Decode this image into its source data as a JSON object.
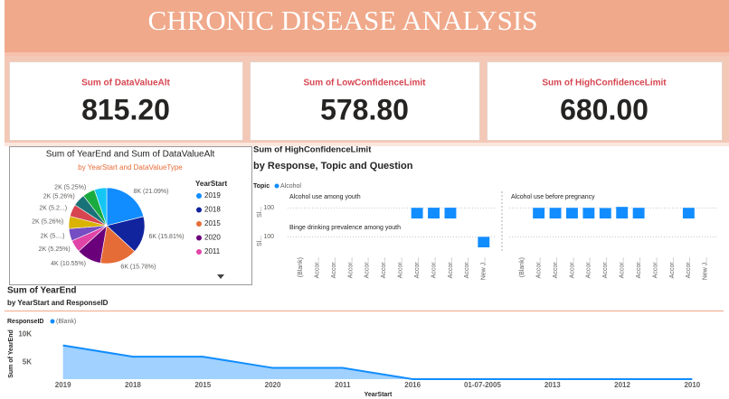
{
  "header": {
    "title": "CHRONIC DISEASE ANALYSIS"
  },
  "kpis": [
    {
      "label": "Sum of DataValueAlt",
      "value": "815.20"
    },
    {
      "label": "Sum of LowConfidenceLimit",
      "value": "578.80"
    },
    {
      "label": "Sum of HighConfidenceLimit",
      "value": "680.00"
    }
  ],
  "chart_data": [
    {
      "type": "pie",
      "title": "Sum of YearEnd and Sum of DataValueAlt",
      "subtitle": "by YearStart and DataValueType",
      "legend_title": "YearStart",
      "categories": [
        "2019",
        "2018",
        "2015",
        "2020",
        "2011",
        null,
        null,
        null,
        null,
        null,
        null
      ],
      "values": [
        21.09,
        15.81,
        15.78,
        10.55,
        5.25,
        5.25,
        5.26,
        5.25,
        5.26,
        5.25,
        5.25
      ],
      "value_labels": [
        "8K (21.09%)",
        "6K (15.81%)",
        "6K (15.78%)",
        "4K (10.55%)",
        "2K (5.25%)",
        "2K (5....)",
        "2K (5.26%)",
        "2K (5.2...)",
        "2K (5.26%)",
        "2K (5.25%)",
        null
      ],
      "colors": [
        "#118dff",
        "#12239e",
        "#e66c37",
        "#6b007b",
        "#e044a7",
        "#744ec2",
        "#d9b300",
        "#d64550",
        "#197278",
        "#1aab40",
        "#15c6f4"
      ]
    },
    {
      "type": "bar",
      "title": "Sum of HighConfidenceLimit",
      "subtitle": "by Response, Topic and Question",
      "legend_title": "Topic",
      "series_name": "Alcohol",
      "color": "#118dff",
      "y_title": "Sl...",
      "categories": [
        "(Blank)",
        "Accor...",
        "Accor...",
        "Accor...",
        "Accor...",
        "Accor...",
        "Accor...",
        "Accor...",
        "Accor...",
        "Accor...",
        "Accor...",
        "New J..."
      ],
      "ylim": [
        0,
        120
      ],
      "yticks": [
        100
      ],
      "grid": true,
      "facets": [
        {
          "title": "Alcohol use among youth",
          "values": [
            null,
            null,
            null,
            null,
            null,
            null,
            null,
            101,
            102,
            102,
            null,
            null
          ]
        },
        {
          "title": "Binge drinking prevalence among youth",
          "values": [
            null,
            null,
            null,
            null,
            null,
            null,
            null,
            null,
            null,
            null,
            null,
            100
          ]
        },
        {
          "title": "Alcohol use before pregnancy",
          "values": [
            null,
            101,
            101,
            101,
            101,
            99,
            110,
            101,
            null,
            null,
            101,
            null
          ]
        }
      ]
    },
    {
      "type": "area",
      "title": "Sum of YearEnd",
      "subtitle": "by YearStart and ResponseID",
      "legend_title": "ResponseID",
      "x_title": "YearStart",
      "y_title": "Sum of YearEnd",
      "categories": [
        "2019",
        "2018",
        "2015",
        "2020",
        "2011",
        "2016",
        "01-07-2005",
        "2013",
        "2012",
        "2010"
      ],
      "series": [
        {
          "name": "(Blank)",
          "color": "#118dff",
          "values": [
            8000,
            6000,
            6000,
            4000,
            4000,
            2000,
            2000,
            2000,
            2000,
            2000
          ]
        }
      ],
      "ylim": [
        2000,
        11000
      ],
      "yticks": [
        {
          "value": 5000,
          "label": "5K"
        },
        {
          "value": 10000,
          "label": "10K"
        }
      ],
      "grid": false
    }
  ]
}
